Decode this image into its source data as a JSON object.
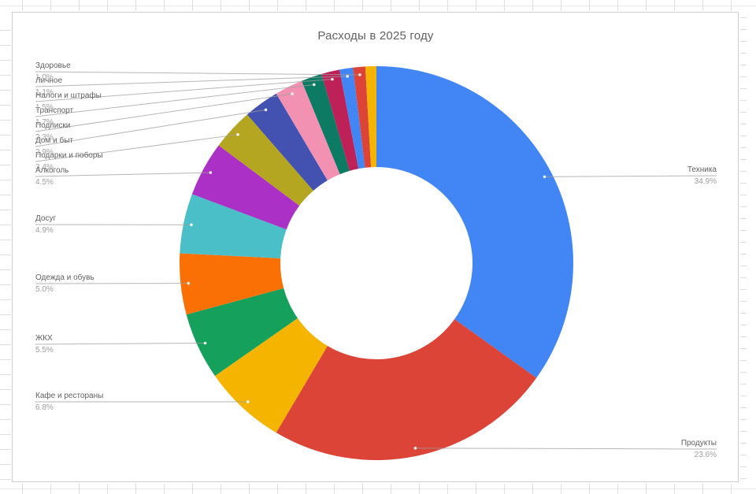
{
  "page": {
    "background": "#ffffff"
  },
  "spreadsheet": {
    "gridline_color": "#e9e9e9",
    "tick_color": "#dedede"
  },
  "card": {
    "background": "#ffffff",
    "border_color": "#cfcfcf"
  },
  "chart": {
    "title": "Расходы в 2025 году",
    "title_color": "#616161",
    "label_name_color": "#616161",
    "label_percent_color": "#9e9e9e",
    "leader_line_color": "#9e9e9e",
    "hole_color": "#ffffff"
  },
  "chart_data": {
    "type": "pie",
    "subtype": "donut",
    "title": "Расходы в 2025 году",
    "unit": "%",
    "donut_hole_ratio": 0.49,
    "legend_position": "labeled-callouts",
    "slices": [
      {
        "label": "Техника",
        "pct": 34.9,
        "color": "#4285F4"
      },
      {
        "label": "Продукты",
        "pct": 23.6,
        "color": "#DB4437"
      },
      {
        "label": "Кафе и рестораны",
        "pct": 6.8,
        "color": "#F4B400"
      },
      {
        "label": "ЖКХ",
        "pct": 5.5,
        "color": "#15A05C"
      },
      {
        "label": "Одежда и обувь",
        "pct": 5.0,
        "color": "#FB7005"
      },
      {
        "label": "Досуг",
        "pct": 4.9,
        "color": "#4BBFC7"
      },
      {
        "label": "Алкоголь",
        "pct": 4.5,
        "color": "#AB30C5"
      },
      {
        "label": "Подарки и поборы",
        "pct": 3.4,
        "color": "#B5A622"
      },
      {
        "label": "Дом и быт",
        "pct": 2.9,
        "color": "#4352B0"
      },
      {
        "label": "Подписки",
        "pct": 2.3,
        "color": "#F291B2"
      },
      {
        "label": "Транспорт",
        "pct": 1.7,
        "color": "#0D7A63"
      },
      {
        "label": "Налоги и штрафы",
        "pct": 1.5,
        "color": "#BE2157"
      },
      {
        "label": "Личное",
        "pct": 1.1,
        "color": "#4285F4"
      },
      {
        "label": "Здоровье",
        "pct": 1.0,
        "color": "#DB4437"
      },
      {
        "label": "",
        "pct": 0.9,
        "color": "#F4B400"
      }
    ]
  }
}
